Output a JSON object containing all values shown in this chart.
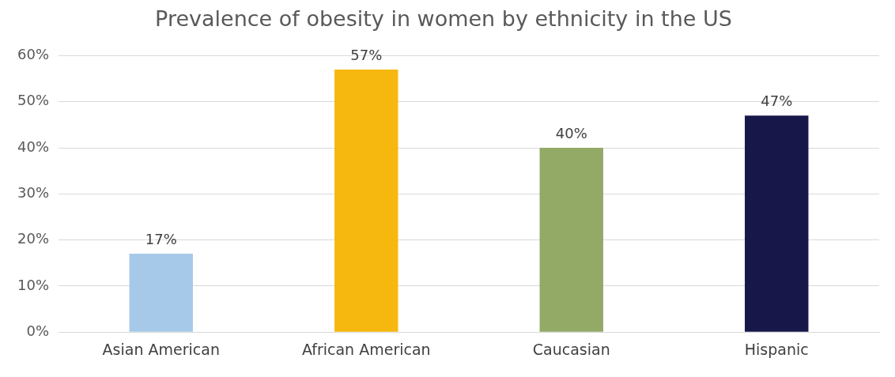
{
  "chart_data": {
    "type": "bar",
    "title": "Prevalence of obesity in women by ethnicity in the US",
    "categories": [
      "Asian American",
      "African American",
      "Caucasian",
      "Hispanic"
    ],
    "values": [
      17,
      57,
      40,
      47
    ],
    "colors": [
      "#a6c9e9",
      "#f6b80f",
      "#93aa67",
      "#18174a"
    ],
    "value_labels": [
      "17%",
      "57%",
      "40%",
      "47%"
    ],
    "ylim": [
      0,
      60
    ],
    "yticks": [
      {
        "value": 0,
        "label": "0%"
      },
      {
        "value": 10,
        "label": "10%"
      },
      {
        "value": 20,
        "label": "20%"
      },
      {
        "value": 30,
        "label": "30%"
      },
      {
        "value": 40,
        "label": "40%"
      },
      {
        "value": 50,
        "label": "50%"
      },
      {
        "value": 60,
        "label": "60%"
      }
    ],
    "grid": "y",
    "legend": false
  }
}
